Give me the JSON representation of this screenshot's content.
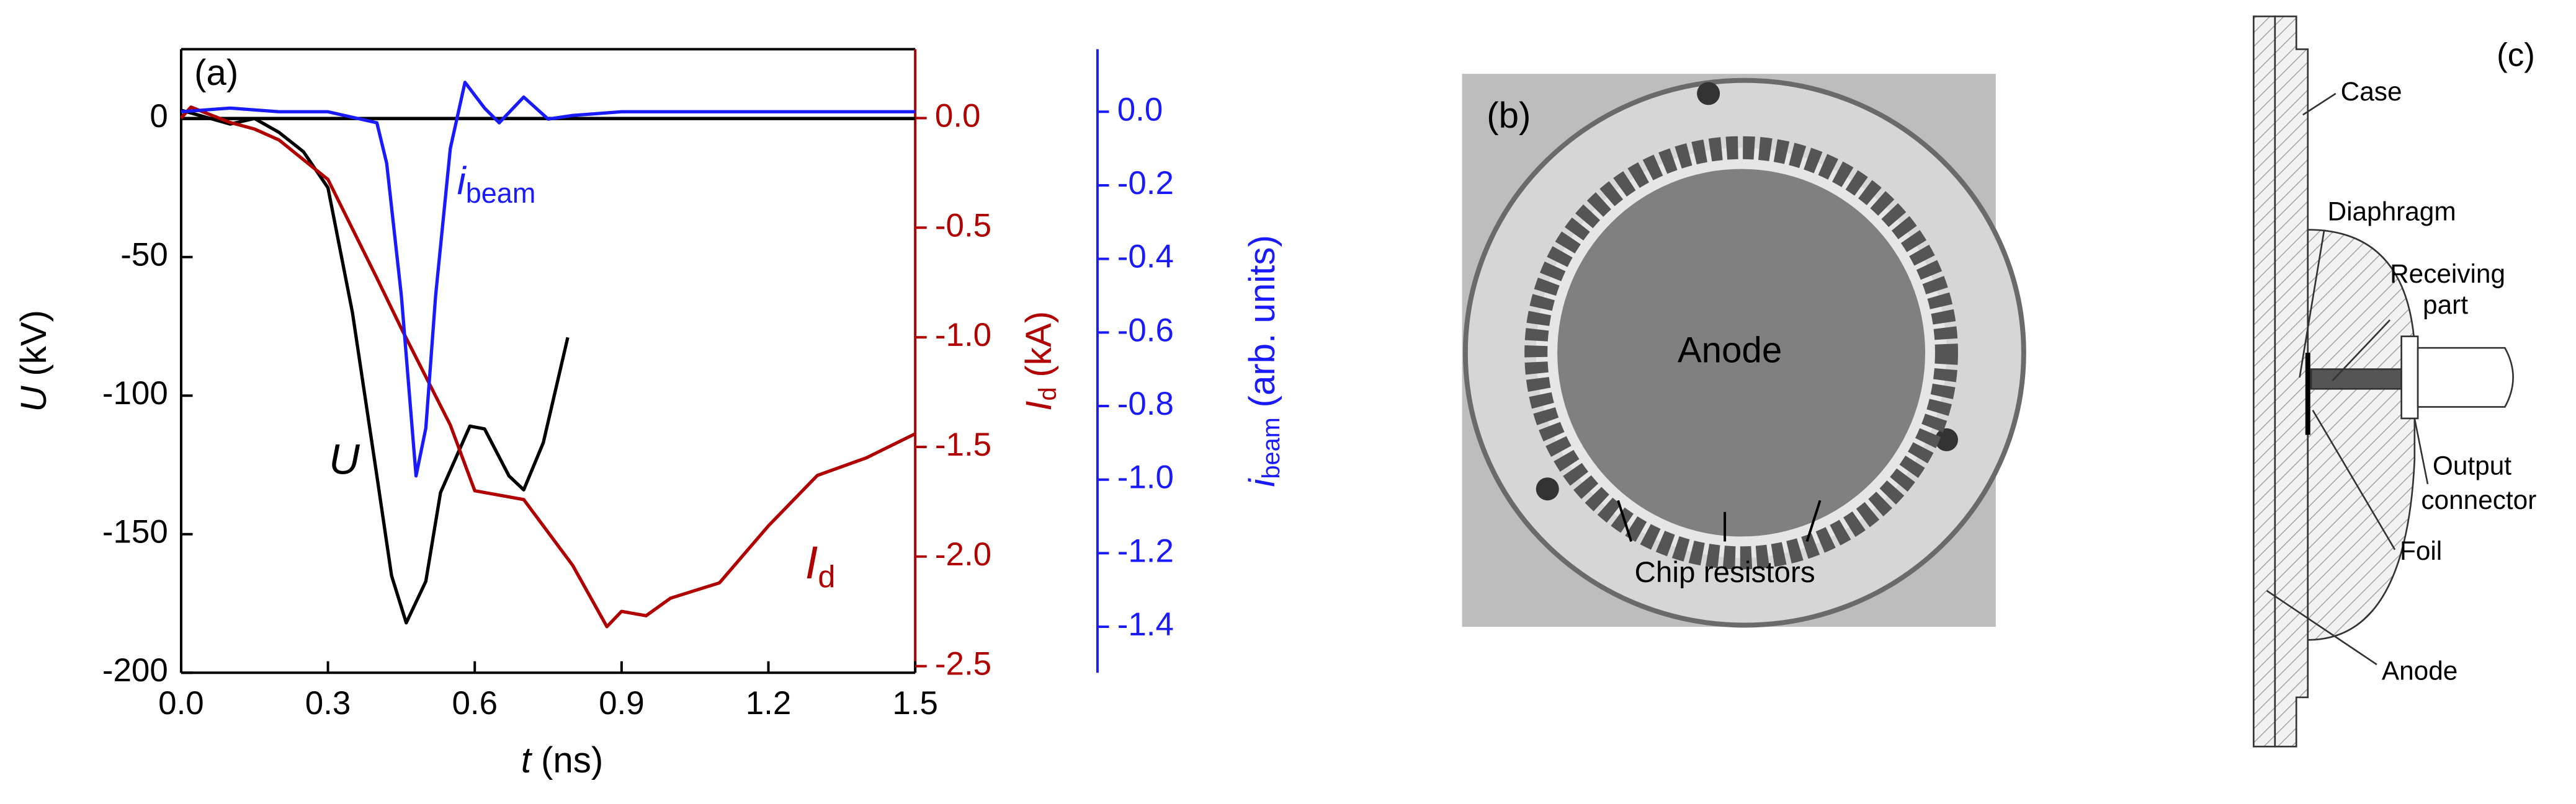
{
  "chart_data": {
    "type": "line",
    "panel_label": "(a)",
    "x_label": {
      "symbol": "t",
      "unit": "(ns)"
    },
    "y_label": {
      "symbol": "U",
      "unit": "(kV)"
    },
    "y2_label": {
      "symbol": "I",
      "sub": "d",
      "unit": "(kA)"
    },
    "y3_label": {
      "symbol": "i",
      "sub": "beam",
      "unit": "(arb. units)"
    },
    "xlim": [
      0,
      1.5
    ],
    "xticks": [
      {
        "value": 0,
        "label": "0.0"
      },
      0.3,
      0.6,
      0.9,
      1.2,
      1.5
    ],
    "ylim": [
      -200,
      25
    ],
    "yticks": [
      -200,
      -150,
      -100,
      -50,
      0
    ],
    "y2lim": [
      -2.53,
      0.314
    ],
    "y2ticks": [
      -2.5,
      {
        "value": -2,
        "label": "-2.0"
      },
      -1.5,
      {
        "value": -1,
        "label": "-1.0"
      },
      -0.5,
      {
        "value": 0,
        "label": "0.0"
      }
    ],
    "y3lim": [
      -1.525,
      0.17
    ],
    "y3ticks": [
      -1.4,
      -1.2,
      {
        "value": -1,
        "label": "-1.0"
      },
      -0.8,
      -0.6,
      -0.4,
      -0.2,
      {
        "value": 0,
        "label": "0.0"
      }
    ],
    "zero_line": true,
    "annotations": [
      {
        "text": "U"
      },
      {
        "text": "i",
        "sub": "beam"
      },
      {
        "text": "I",
        "sub": "d"
      }
    ],
    "series": [
      {
        "name": "U",
        "color": "#000000",
        "axis": "y",
        "x": [
          0,
          0.1,
          0.15,
          0.2,
          0.25,
          0.3,
          0.35,
          0.4,
          0.43,
          0.46,
          0.5,
          0.53,
          0.59,
          0.62,
          0.67,
          0.7,
          0.74,
          0.79
        ],
        "values": [
          3,
          -2,
          0,
          -5,
          -12,
          -25,
          -70,
          -129,
          -165,
          -182,
          -167,
          -135,
          -111,
          -112,
          -129,
          -134,
          -117,
          -79
        ]
      },
      {
        "name": "Id",
        "color": "#b00000",
        "axis": "y2",
        "x": [
          0,
          0.02,
          0.1,
          0.15,
          0.2,
          0.3,
          0.4,
          0.45,
          0.5,
          0.55,
          0.6,
          0.7,
          0.8,
          0.87,
          0.9,
          0.95,
          1.0,
          1.1,
          1.2,
          1.3,
          1.4,
          1.5
        ],
        "values": [
          0,
          0.05,
          -0.02,
          -0.05,
          -0.1,
          -0.28,
          -0.73,
          -0.96,
          -1.18,
          -1.4,
          -1.7,
          -1.74,
          -2.04,
          -2.32,
          -2.25,
          -2.27,
          -2.19,
          -2.12,
          -1.86,
          -1.63,
          -1.55,
          -1.44
        ]
      },
      {
        "name": "ibeam",
        "color": "#1a1aff",
        "axis": "y3",
        "x": [
          0,
          0.1,
          0.2,
          0.3,
          0.4,
          0.42,
          0.45,
          0.48,
          0.5,
          0.52,
          0.55,
          0.58,
          0.62,
          0.65,
          0.7,
          0.75,
          0.8,
          0.9,
          1.0,
          1.5
        ],
        "values": [
          0,
          0.01,
          0,
          0,
          -0.03,
          -0.14,
          -0.5,
          -0.99,
          -0.86,
          -0.5,
          -0.1,
          0.08,
          0.01,
          -0.03,
          0.04,
          -0.02,
          -0.01,
          0,
          0,
          0
        ]
      }
    ]
  },
  "photo": {
    "panel_label": "(b)",
    "anode_label": "Anode",
    "resistor_label": "Chip resistors"
  },
  "diagram": {
    "panel_label": "(c)",
    "labels": {
      "case": "Case",
      "diaphragm": "Diaphragm",
      "receiving": [
        "Receiving",
        "part"
      ],
      "output": [
        "Output",
        "connector"
      ],
      "foil": "Foil",
      "anode": "Anode"
    }
  }
}
